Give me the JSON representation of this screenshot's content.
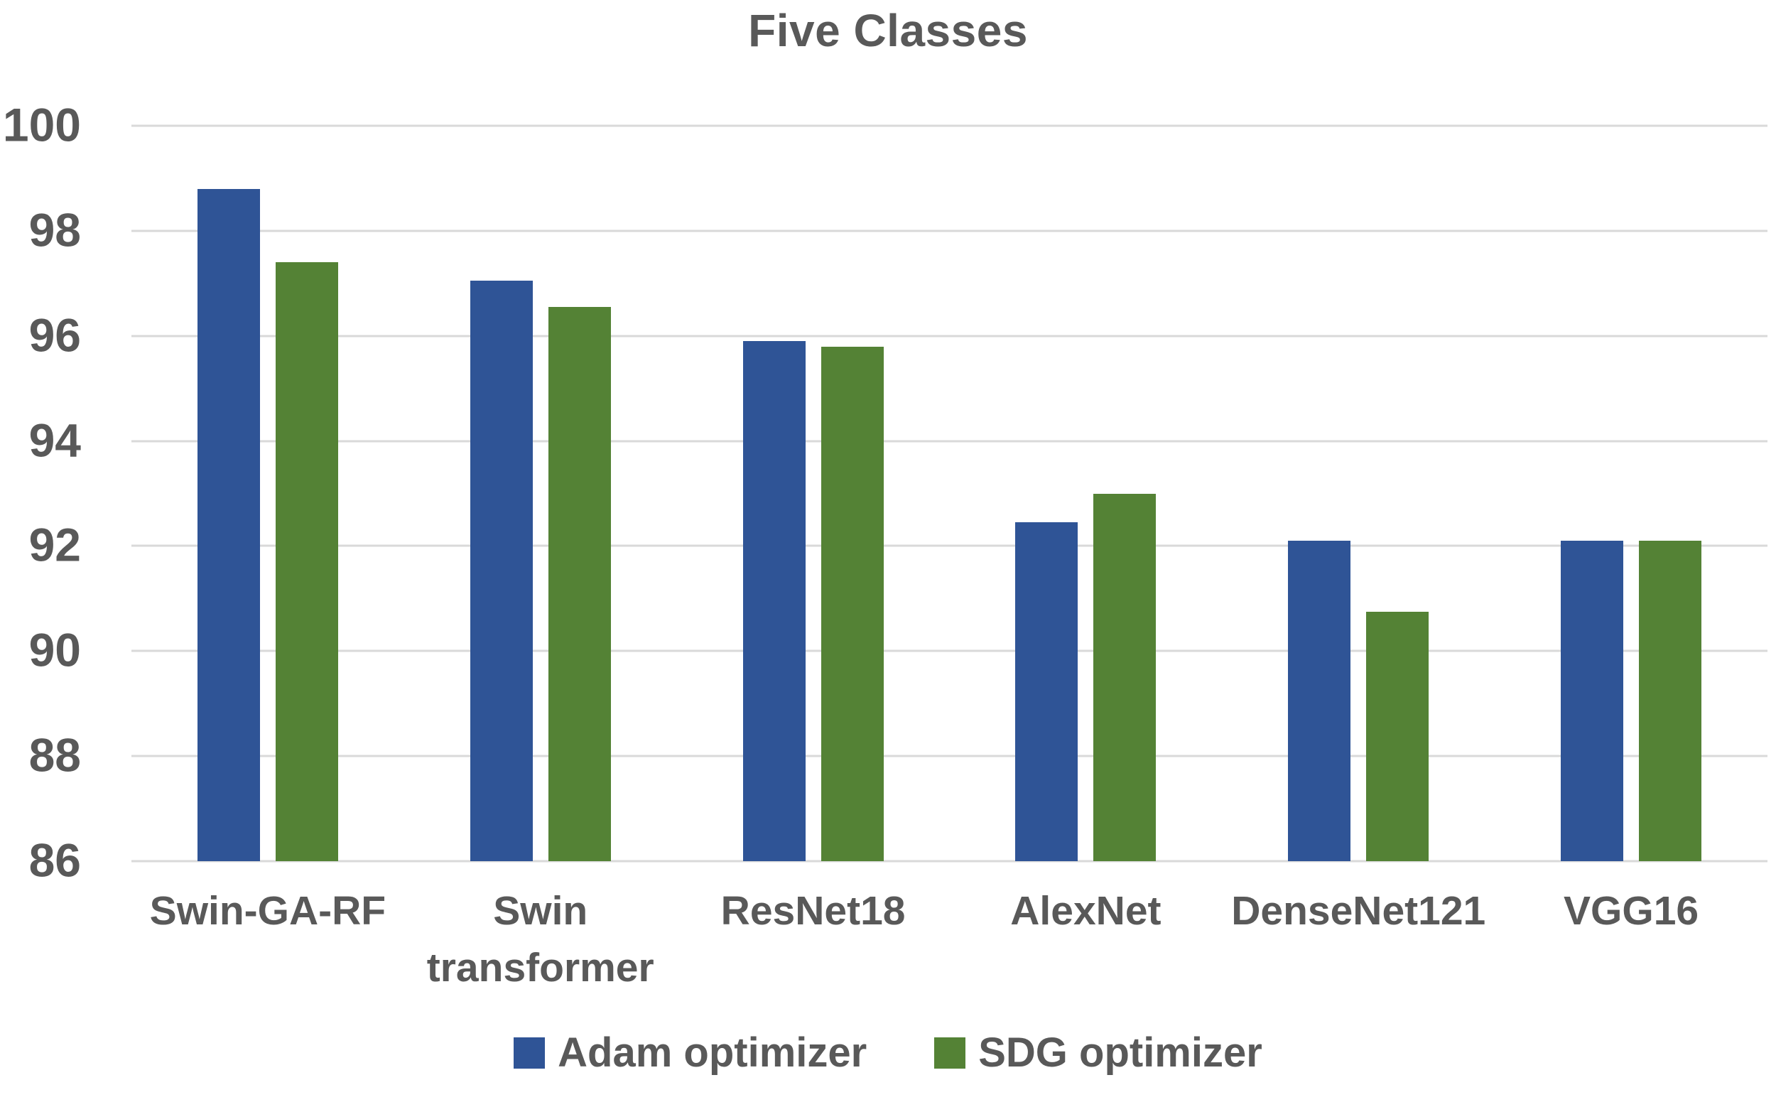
{
  "figure": {
    "background": "#FFFFFF",
    "text_color": "#595959"
  },
  "chart_data": {
    "type": "bar",
    "title": "Five Classes",
    "categories": [
      "Swin-GA-RF",
      "Swin transformer",
      "ResNet18",
      "AlexNet",
      "DenseNet121",
      "VGG16"
    ],
    "series": [
      {
        "name": "Adam optimizer",
        "color": "#2F5496",
        "values": [
          98.8,
          97.05,
          95.9,
          92.45,
          92.1,
          92.1
        ]
      },
      {
        "name": "SDG optimizer",
        "color": "#548235",
        "values": [
          97.4,
          96.55,
          95.8,
          93.0,
          90.75,
          92.1
        ]
      }
    ],
    "xlabel": "",
    "ylabel": "",
    "ylim": [
      86,
      100
    ],
    "yticks": [
      86,
      88,
      90,
      92,
      94,
      96,
      98,
      100
    ],
    "grid": true,
    "gridline_color": "#D9D9D9",
    "legend_position": "bottom"
  }
}
